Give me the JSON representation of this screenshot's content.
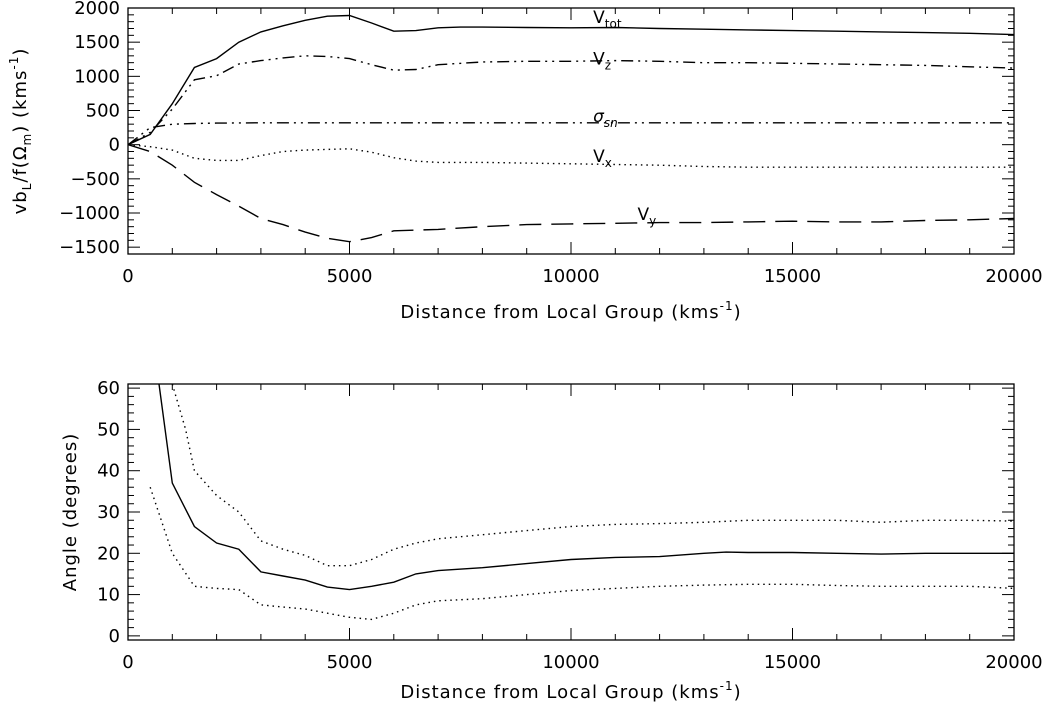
{
  "chart_data": [
    {
      "type": "line",
      "xlabel": "Distance from Local Group (kms",
      "xlabel_sup": "-1",
      "xlabel_end": ")",
      "ylabel": "vb",
      "ylabel_sub": "L",
      "ylabel_mid": "/f(Ω",
      "ylabel_sub2": "m",
      "ylabel_mid2": ")  (kms",
      "ylabel_sup": "-1",
      "ylabel_end": ")",
      "xlim": [
        0,
        20000
      ],
      "ylim": [
        -1600,
        2000
      ],
      "xticks": [
        0,
        5000,
        10000,
        15000,
        20000
      ],
      "xtick_labels": [
        "0",
        "5000",
        "10000",
        "15000",
        "20000"
      ],
      "yticks": [
        -1500,
        -1000,
        -500,
        0,
        500,
        1000,
        1500,
        2000
      ],
      "ytick_labels": [
        "−1500",
        "−1000",
        "−500",
        "0",
        "500",
        "1000",
        "1500",
        "2000"
      ],
      "series": [
        {
          "name": "V",
          "name_sub": "tot",
          "style": "solid",
          "label_at": [
            10500,
            1780
          ],
          "x": [
            0,
            500,
            1000,
            1500,
            2000,
            2500,
            3000,
            3500,
            4000,
            4500,
            5000,
            5500,
            6000,
            6500,
            7000,
            7500,
            8000,
            9000,
            10000,
            11000,
            12000,
            13000,
            14000,
            15000,
            16000,
            17000,
            18000,
            19000,
            20000
          ],
          "y": [
            0,
            150,
            600,
            1130,
            1260,
            1500,
            1650,
            1740,
            1820,
            1880,
            1890,
            1780,
            1660,
            1670,
            1710,
            1720,
            1720,
            1715,
            1710,
            1715,
            1700,
            1690,
            1680,
            1670,
            1660,
            1650,
            1640,
            1630,
            1610
          ]
        },
        {
          "name": "V",
          "name_sub": "z",
          "style": "dashdotdot",
          "label_at": [
            10500,
            1170
          ],
          "x": [
            0,
            500,
            1000,
            1500,
            2000,
            2500,
            3000,
            3500,
            4000,
            4500,
            5000,
            5500,
            6000,
            6500,
            7000,
            8000,
            9000,
            10000,
            11000,
            12000,
            13000,
            14000,
            15000,
            16000,
            17000,
            18000,
            19000,
            20000
          ],
          "y": [
            0,
            180,
            520,
            950,
            1010,
            1180,
            1230,
            1270,
            1300,
            1290,
            1260,
            1170,
            1090,
            1100,
            1170,
            1210,
            1220,
            1220,
            1230,
            1220,
            1200,
            1200,
            1190,
            1180,
            1170,
            1160,
            1140,
            1120
          ]
        },
        {
          "name": "σ",
          "name_sub": "sn",
          "style": "dashdotdot",
          "label_at": [
            10500,
            330
          ],
          "x": [
            0,
            500,
            1000,
            1500,
            2000,
            3000,
            4000,
            5000,
            6000,
            8000,
            10000,
            12000,
            14000,
            16000,
            18000,
            20000
          ],
          "y": [
            0,
            250,
            300,
            310,
            315,
            320,
            320,
            320,
            320,
            320,
            320,
            320,
            320,
            320,
            320,
            320
          ]
        },
        {
          "name": "V",
          "name_sub": "x",
          "style": "dotted",
          "label_at": [
            10500,
            -250
          ],
          "x": [
            0,
            500,
            1000,
            1500,
            2000,
            2500,
            3000,
            3500,
            4000,
            4500,
            5000,
            5500,
            6000,
            6500,
            7000,
            8000,
            9000,
            10000,
            11000,
            12000,
            13000,
            14000,
            15000,
            16000,
            17000,
            18000,
            19000,
            20000
          ],
          "y": [
            0,
            -30,
            -80,
            -200,
            -230,
            -230,
            -160,
            -100,
            -80,
            -70,
            -60,
            -110,
            -190,
            -240,
            -260,
            -260,
            -270,
            -280,
            -290,
            -300,
            -320,
            -330,
            -330,
            -330,
            -330,
            -330,
            -330,
            -330
          ]
        },
        {
          "name": "V",
          "name_sub": "y",
          "style": "longdash",
          "label_at": [
            11500,
            -1100
          ],
          "x": [
            0,
            500,
            1000,
            1500,
            2000,
            2500,
            3000,
            3500,
            4000,
            4500,
            5000,
            5500,
            6000,
            7000,
            8000,
            9000,
            10000,
            11000,
            12000,
            13000,
            14000,
            15000,
            16000,
            17000,
            18000,
            19000,
            20000
          ],
          "y": [
            0,
            -100,
            -300,
            -550,
            -730,
            -900,
            -1080,
            -1170,
            -1280,
            -1370,
            -1420,
            -1360,
            -1260,
            -1240,
            -1200,
            -1170,
            -1160,
            -1150,
            -1140,
            -1140,
            -1130,
            -1120,
            -1130,
            -1130,
            -1110,
            -1100,
            -1080
          ]
        }
      ]
    },
    {
      "type": "line",
      "xlabel": "Distance from Local Group (kms",
      "xlabel_sup": "-1",
      "xlabel_end": ")",
      "ylabel": "Angle (degrees)",
      "xlim": [
        0,
        20000
      ],
      "ylim": [
        -1,
        61
      ],
      "xticks": [
        0,
        5000,
        10000,
        15000,
        20000
      ],
      "xtick_labels": [
        "0",
        "5000",
        "10000",
        "15000",
        "20000"
      ],
      "yticks": [
        0,
        10,
        20,
        30,
        40,
        50,
        60
      ],
      "ytick_labels": [
        "0",
        "10",
        "20",
        "30",
        "40",
        "50",
        "60"
      ],
      "series": [
        {
          "style": "solid",
          "x": [
            700,
            1000,
            1500,
            2000,
            2500,
            3000,
            3500,
            4000,
            4500,
            5000,
            5500,
            6000,
            6500,
            7000,
            8000,
            9000,
            10000,
            11000,
            12000,
            13000,
            13500,
            14000,
            15000,
            16000,
            17000,
            18000,
            19000,
            20000
          ],
          "y": [
            61,
            37,
            26.5,
            22.5,
            21,
            15.5,
            14.5,
            13.5,
            11.8,
            11.2,
            12,
            13,
            15,
            15.8,
            16.5,
            17.5,
            18.5,
            19,
            19.2,
            20,
            20.3,
            20.2,
            20.2,
            20,
            19.8,
            20,
            20,
            20
          ]
        },
        {
          "style": "dotted",
          "x": [
            1000,
            1300,
            1500,
            2000,
            2500,
            3000,
            3500,
            4000,
            4500,
            5000,
            5500,
            6000,
            6500,
            7000,
            8000,
            9000,
            10000,
            11000,
            12000,
            13000,
            14000,
            15000,
            16000,
            17000,
            18000,
            19000,
            20000
          ],
          "y": [
            61,
            50,
            40,
            34,
            30,
            23,
            21,
            19.5,
            17,
            17,
            18.5,
            21,
            22.5,
            23.5,
            24.5,
            25.5,
            26.5,
            27,
            27.2,
            27.5,
            28,
            28,
            28,
            27.5,
            28,
            28,
            27.8
          ]
        },
        {
          "style": "dotted",
          "x": [
            500,
            1000,
            1500,
            2000,
            2500,
            3000,
            3500,
            4000,
            4500,
            5000,
            5500,
            6000,
            6500,
            7000,
            8000,
            9000,
            10000,
            11000,
            12000,
            13000,
            14000,
            15000,
            16000,
            17000,
            18000,
            19000,
            20000
          ],
          "y": [
            36,
            20,
            12,
            11.5,
            11.2,
            7.5,
            7,
            6.5,
            5.5,
            4.5,
            4,
            5.5,
            7.5,
            8.5,
            9,
            10,
            11,
            11.5,
            12,
            12.3,
            12.5,
            12.5,
            12.2,
            12,
            12,
            12,
            11.5
          ]
        }
      ]
    }
  ]
}
